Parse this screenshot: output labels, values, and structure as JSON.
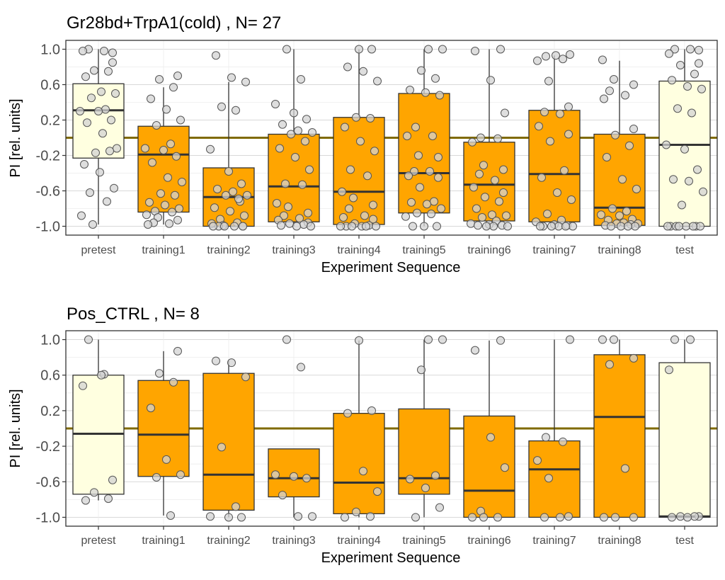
{
  "chart_data": [
    {
      "type": "boxplot",
      "title": "Gr28bd+TrpA1(cold) , N= 27",
      "xlabel": "Experiment Sequence",
      "ylabel": "PI [rel. units]",
      "ylim": [
        -1.1,
        1.1
      ],
      "yticks": [
        -1.0,
        -0.6,
        -0.2,
        0.2,
        0.6,
        1.0
      ],
      "ytick_labels": [
        "-1.0",
        "-0.6",
        "-0.2",
        "0.2",
        "0.6",
        "1.0"
      ],
      "reference_line": 0,
      "categories": [
        "pretest",
        "training1",
        "training2",
        "training3",
        "training4",
        "training5",
        "training6",
        "training7",
        "training8",
        "test"
      ],
      "box_colors": [
        "#ffffe0",
        "#ffa500",
        "#ffa500",
        "#ffa500",
        "#ffa500",
        "#ffa500",
        "#ffa500",
        "#ffa500",
        "#ffa500",
        "#ffffe0"
      ],
      "boxes": [
        {
          "min": -0.98,
          "q1": -0.23,
          "median": 0.31,
          "q3": 0.61,
          "max": 1.0
        },
        {
          "min": -0.98,
          "q1": -0.84,
          "median": -0.19,
          "q3": 0.13,
          "max": 0.57
        },
        {
          "min": -1.0,
          "q1": -1.0,
          "median": -0.67,
          "q3": -0.34,
          "max": 0.63
        },
        {
          "min": -1.0,
          "q1": -0.95,
          "median": -0.55,
          "q3": 0.04,
          "max": 1.0
        },
        {
          "min": -1.0,
          "q1": -0.98,
          "median": -0.61,
          "q3": 0.23,
          "max": 1.0
        },
        {
          "min": -1.0,
          "q1": -0.85,
          "median": -0.4,
          "q3": 0.5,
          "max": 1.0
        },
        {
          "min": -1.0,
          "q1": -0.94,
          "median": -0.53,
          "q3": -0.05,
          "max": 1.0
        },
        {
          "min": -1.0,
          "q1": -0.95,
          "median": -0.41,
          "q3": 0.31,
          "max": 0.93
        },
        {
          "min": -1.0,
          "q1": -0.99,
          "median": -0.79,
          "q3": 0.04,
          "max": 0.87
        },
        {
          "min": -1.0,
          "q1": -1.0,
          "median": -0.08,
          "q3": 0.64,
          "max": 1.0
        }
      ],
      "points": [
        [
          1.0,
          0.98,
          0.98,
          0.85,
          0.76,
          0.75,
          0.69,
          0.52,
          0.5,
          0.45,
          0.32,
          0.3,
          0.3,
          0.2,
          0.17,
          0.05,
          -0.12,
          -0.17,
          -0.15,
          -0.3,
          -0.39,
          -0.57,
          -0.62,
          -0.72,
          -0.88,
          -0.98,
          0.96
        ],
        [
          0.7,
          0.66,
          0.57,
          0.44,
          0.32,
          0.2,
          0.14,
          -0.07,
          -0.12,
          -0.14,
          -0.21,
          -0.28,
          -0.45,
          -0.5,
          -0.63,
          -0.65,
          -0.73,
          -0.76,
          -0.8,
          -0.83,
          -0.84,
          -0.87,
          -0.9,
          -0.93,
          -0.96,
          -0.97,
          -0.98
        ],
        [
          0.93,
          0.68,
          0.63,
          0.35,
          0.31,
          -0.13,
          -0.38,
          -0.52,
          -0.58,
          -0.61,
          -0.65,
          -0.65,
          -0.72,
          -0.79,
          -0.83,
          -0.88,
          -0.92,
          -0.96,
          -0.97,
          -0.99,
          -1.0,
          -1.0,
          -1.0,
          -1.0,
          -1.0,
          -1.0,
          -0.69
        ],
        [
          1.0,
          0.66,
          0.38,
          0.28,
          0.21,
          0.15,
          0.08,
          0.06,
          0.04,
          -0.04,
          -0.12,
          -0.22,
          -0.36,
          -0.52,
          -0.53,
          -0.74,
          -0.78,
          -0.85,
          -0.88,
          -0.91,
          -0.93,
          -0.96,
          -0.97,
          -0.98,
          -0.99,
          -1.0,
          -1.0
        ],
        [
          1.0,
          1.0,
          0.8,
          0.75,
          0.64,
          0.23,
          0.22,
          0.12,
          -0.04,
          -0.15,
          -0.36,
          -0.43,
          -0.61,
          -0.68,
          -0.76,
          -0.8,
          -0.88,
          -0.9,
          -0.92,
          -0.97,
          -0.99,
          -1.0,
          -1.0,
          -1.0,
          -1.0,
          -1.0,
          -1.0
        ],
        [
          1.0,
          1.0,
          0.76,
          0.67,
          0.54,
          0.51,
          0.48,
          0.12,
          0.02,
          0.02,
          -0.2,
          -0.22,
          -0.38,
          -0.38,
          -0.43,
          -0.45,
          -0.56,
          -0.72,
          -0.73,
          -0.75,
          -0.8,
          -0.85,
          -0.86,
          -0.89,
          -1.0,
          -1.0,
          -1.0
        ],
        [
          1.0,
          0.98,
          0.65,
          0.28,
          0.0,
          -0.01,
          -0.05,
          -0.31,
          -0.36,
          -0.41,
          -0.48,
          -0.56,
          -0.62,
          -0.67,
          -0.72,
          -0.8,
          -0.87,
          -0.88,
          -0.9,
          -0.94,
          -0.97,
          -0.98,
          -0.99,
          -0.99,
          -1.0,
          -1.0,
          -1.0
        ],
        [
          0.94,
          0.92,
          0.89,
          0.87,
          0.64,
          0.35,
          0.29,
          0.27,
          0.13,
          0.04,
          -0.04,
          -0.37,
          -0.45,
          -0.62,
          -0.7,
          -0.86,
          -0.93,
          -0.95,
          -0.98,
          -0.99,
          -1.0,
          -1.0,
          -1.0,
          -1.0,
          -1.0,
          -1.0,
          0.93
        ],
        [
          0.88,
          0.66,
          0.6,
          0.53,
          0.48,
          0.44,
          0.1,
          0.03,
          -0.09,
          -0.22,
          -0.47,
          -0.58,
          -0.8,
          -0.83,
          -0.87,
          -0.88,
          -0.92,
          -0.93,
          -0.96,
          -0.97,
          -0.97,
          -0.98,
          -0.99,
          -1.0,
          -1.0,
          -1.0,
          -1.0
        ],
        [
          1.0,
          1.0,
          0.95,
          0.84,
          0.82,
          0.72,
          0.65,
          0.58,
          0.55,
          0.33,
          0.28,
          -0.08,
          -0.13,
          -0.36,
          -0.47,
          -0.49,
          -0.61,
          -0.76,
          -1.0,
          -1.0,
          -1.0,
          -1.0,
          -1.0,
          -1.0,
          -1.0,
          -1.0,
          0.99
        ]
      ]
    },
    {
      "type": "boxplot",
      "title": "Pos_CTRL , N= 8",
      "xlabel": "Experiment Sequence",
      "ylabel": "PI [rel. units]",
      "ylim": [
        -1.1,
        1.1
      ],
      "yticks": [
        -1.0,
        -0.6,
        -0.2,
        0.2,
        0.6,
        1.0
      ],
      "ytick_labels": [
        "-1.0",
        "-0.6",
        "-0.2",
        "0.2",
        "0.6",
        "1.0"
      ],
      "reference_line": 0,
      "categories": [
        "pretest",
        "training1",
        "training2",
        "training3",
        "training4",
        "training5",
        "training6",
        "training7",
        "training8",
        "test"
      ],
      "box_colors": [
        "#ffffe0",
        "#ffa500",
        "#ffa500",
        "#ffa500",
        "#ffa500",
        "#ffa500",
        "#ffa500",
        "#ffa500",
        "#ffa500",
        "#ffffe0"
      ],
      "boxes": [
        {
          "min": -0.81,
          "q1": -0.74,
          "median": -0.06,
          "q3": 0.6,
          "max": 1.0
        },
        {
          "min": -0.98,
          "q1": -0.54,
          "median": -0.07,
          "q3": 0.54,
          "max": 0.87
        },
        {
          "min": -1.0,
          "q1": -0.92,
          "median": -0.52,
          "q3": 0.62,
          "max": 0.76
        },
        {
          "min": -1.0,
          "q1": -0.77,
          "median": -0.56,
          "q3": -0.23,
          "max": -0.23
        },
        {
          "min": -1.0,
          "q1": -0.96,
          "median": -0.61,
          "q3": 0.17,
          "max": 0.99
        },
        {
          "min": -1.0,
          "q1": -0.74,
          "median": -0.56,
          "q3": 0.22,
          "max": 1.0
        },
        {
          "min": -1.0,
          "q1": -1.0,
          "median": -0.7,
          "q3": 0.14,
          "max": 0.99
        },
        {
          "min": -1.0,
          "q1": -1.0,
          "median": -0.46,
          "q3": -0.14,
          "max": 1.0
        },
        {
          "min": -1.0,
          "q1": -1.0,
          "median": 0.13,
          "q3": 0.83,
          "max": 1.0
        },
        {
          "min": -1.0,
          "q1": -1.0,
          "median": -0.99,
          "q3": 0.74,
          "max": 1.0
        }
      ],
      "points": [
        [
          1.0,
          0.61,
          0.48,
          -0.58,
          -0.72,
          -0.79,
          -0.81,
          0.6
        ],
        [
          0.87,
          0.62,
          0.52,
          0.23,
          -0.35,
          -0.52,
          -0.55,
          -0.98
        ],
        [
          0.76,
          0.74,
          0.58,
          -0.21,
          -0.88,
          -0.99,
          -1.0,
          -1.0
        ],
        [
          1.0,
          0.69,
          -0.52,
          -0.54,
          -0.56,
          -0.75,
          -0.99,
          -0.99
        ],
        [
          0.99,
          0.2,
          0.17,
          -0.48,
          -0.71,
          -0.94,
          -0.99,
          -1.0
        ],
        [
          1.0,
          1.0,
          0.66,
          -0.53,
          -0.57,
          -0.67,
          -0.89,
          -1.0
        ],
        [
          0.99,
          0.88,
          -0.1,
          -0.44,
          -0.93,
          -1.0,
          -1.0,
          -1.0
        ],
        [
          1.0,
          -0.1,
          -0.15,
          -0.36,
          -0.56,
          -0.99,
          -1.0,
          -1.0
        ],
        [
          1.0,
          1.0,
          0.79,
          0.72,
          -0.45,
          -1.0,
          -1.0,
          -1.0
        ],
        [
          1.0,
          1.0,
          0.66,
          -0.99,
          -0.99,
          -0.99,
          -1.0,
          -1.0
        ]
      ]
    }
  ]
}
